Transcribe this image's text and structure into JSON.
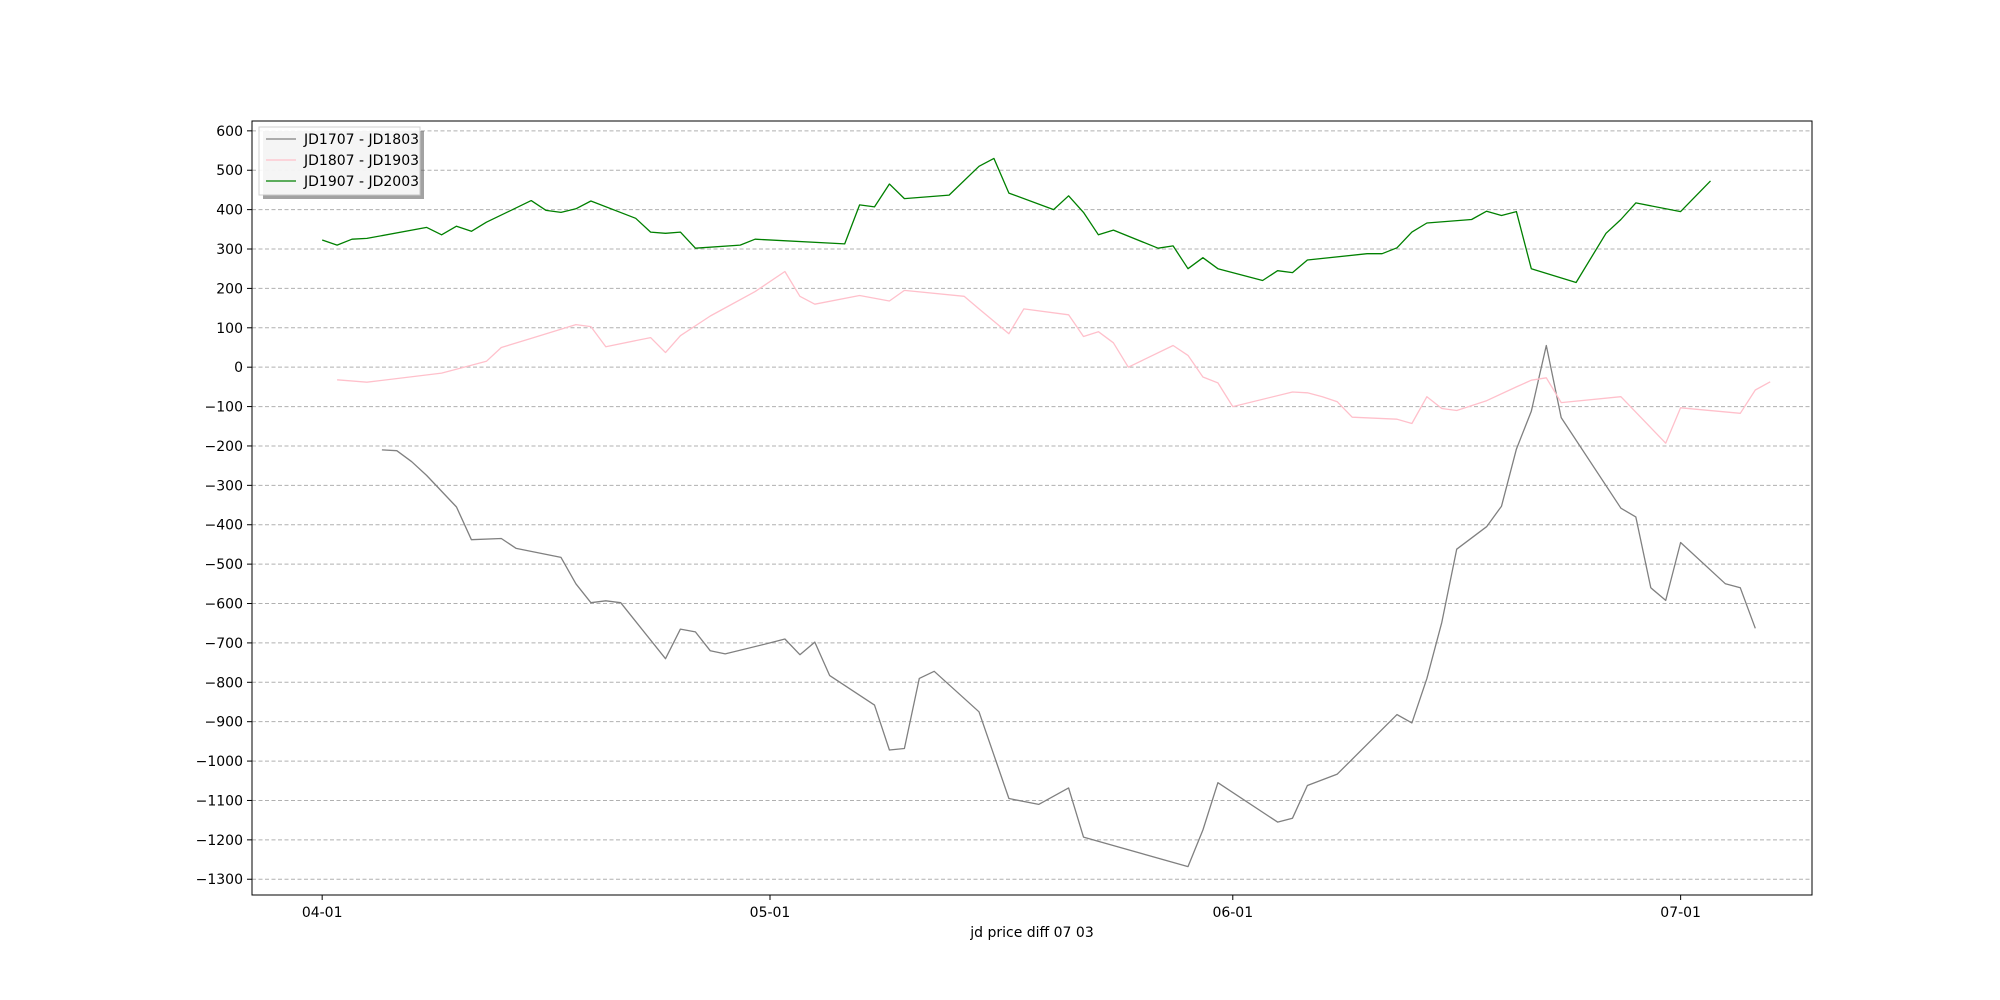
{
  "chart_data": {
    "type": "line",
    "xlabel": "jd price diff 07 03",
    "ylabel": "",
    "title": "",
    "x_ticks": [
      {
        "day": 0,
        "label": "04-01"
      },
      {
        "day": 30,
        "label": "05-01"
      },
      {
        "day": 61,
        "label": "06-01"
      },
      {
        "day": 91,
        "label": "07-01"
      }
    ],
    "xlim": [
      -4.7,
      99.8
    ],
    "ylim": [
      -1340,
      625
    ],
    "y_ticks": [
      600,
      500,
      400,
      300,
      200,
      100,
      0,
      -100,
      -200,
      -300,
      -400,
      -500,
      -600,
      -700,
      -800,
      -900,
      -1000,
      -1100,
      -1200,
      -1300
    ],
    "y_tick_labels": [
      "600",
      "500",
      "400",
      "300",
      "200",
      "100",
      "0",
      "−100",
      "−200",
      "−300",
      "−400",
      "−500",
      "−600",
      "−700",
      "−800",
      "−900",
      "−1000",
      "−1100",
      "−1200",
      "−1300"
    ],
    "grid": "horizontal dashed",
    "legend_position": "top-left",
    "series": [
      {
        "name": "JD1707 - JD1803",
        "color": "#808080",
        "points": [
          [
            4,
            -210
          ],
          [
            5,
            -212
          ],
          [
            6,
            -240
          ],
          [
            7,
            -275
          ],
          [
            9,
            -355
          ],
          [
            10,
            -438
          ],
          [
            12,
            -435
          ],
          [
            13,
            -460
          ],
          [
            16,
            -483
          ],
          [
            17,
            -550
          ],
          [
            18,
            -598
          ],
          [
            19,
            -593
          ],
          [
            20,
            -598
          ],
          [
            23,
            -740
          ],
          [
            24,
            -665
          ],
          [
            25,
            -672
          ],
          [
            26,
            -720
          ],
          [
            27,
            -728
          ],
          [
            30,
            -700
          ],
          [
            31,
            -690
          ],
          [
            32,
            -730
          ],
          [
            33,
            -698
          ],
          [
            34,
            -783
          ],
          [
            37,
            -858
          ],
          [
            38,
            -972
          ],
          [
            39,
            -968
          ],
          [
            40,
            -790
          ],
          [
            41,
            -772
          ],
          [
            44,
            -875
          ],
          [
            46,
            -1095
          ],
          [
            48,
            -1110
          ],
          [
            50,
            -1068
          ],
          [
            51,
            -1193
          ],
          [
            58,
            -1268
          ],
          [
            59,
            -1175
          ],
          [
            60,
            -1055
          ],
          [
            64,
            -1155
          ],
          [
            65,
            -1145
          ],
          [
            66,
            -1062
          ],
          [
            68,
            -1033
          ],
          [
            72,
            -882
          ],
          [
            73,
            -903
          ],
          [
            74,
            -790
          ],
          [
            75,
            -648
          ],
          [
            76,
            -462
          ],
          [
            78,
            -405
          ],
          [
            79,
            -353
          ],
          [
            80,
            -208
          ],
          [
            81,
            -112
          ],
          [
            82,
            55
          ],
          [
            83,
            -128
          ],
          [
            87,
            -358
          ],
          [
            88,
            -380
          ],
          [
            89,
            -560
          ],
          [
            90,
            -592
          ],
          [
            91,
            -445
          ],
          [
            94,
            -550
          ],
          [
            95,
            -560
          ],
          [
            96,
            -663
          ]
        ]
      },
      {
        "name": "JD1807 - JD1903",
        "color": "#ffc0cb",
        "points": [
          [
            1,
            -32
          ],
          [
            3,
            -38
          ],
          [
            8,
            -15
          ],
          [
            10,
            5
          ],
          [
            11,
            15
          ],
          [
            12,
            50
          ],
          [
            14,
            73
          ],
          [
            17,
            108
          ],
          [
            18,
            103
          ],
          [
            19,
            52
          ],
          [
            22,
            75
          ],
          [
            23,
            37
          ],
          [
            24,
            80
          ],
          [
            26,
            130
          ],
          [
            29,
            192
          ],
          [
            31,
            243
          ],
          [
            32,
            180
          ],
          [
            33,
            160
          ],
          [
            36,
            182
          ],
          [
            38,
            168
          ],
          [
            39,
            195
          ],
          [
            43,
            180
          ],
          [
            44,
            148
          ],
          [
            46,
            85
          ],
          [
            47,
            148
          ],
          [
            50,
            133
          ],
          [
            51,
            78
          ],
          [
            52,
            90
          ],
          [
            53,
            62
          ],
          [
            54,
            0
          ],
          [
            57,
            55
          ],
          [
            58,
            30
          ],
          [
            59,
            -25
          ],
          [
            60,
            -40
          ],
          [
            61,
            -100
          ],
          [
            65,
            -63
          ],
          [
            66,
            -65
          ],
          [
            67,
            -75
          ],
          [
            68,
            -88
          ],
          [
            69,
            -127
          ],
          [
            72,
            -132
          ],
          [
            73,
            -143
          ],
          [
            74,
            -75
          ],
          [
            75,
            -105
          ],
          [
            76,
            -110
          ],
          [
            78,
            -85
          ],
          [
            80,
            -50
          ],
          [
            81,
            -33
          ],
          [
            82,
            -27
          ],
          [
            83,
            -90
          ],
          [
            87,
            -75
          ],
          [
            90,
            -193
          ],
          [
            91,
            -103
          ],
          [
            95,
            -117
          ],
          [
            96,
            -58
          ],
          [
            97,
            -37
          ]
        ]
      },
      {
        "name": "JD1907 - JD2003",
        "color": "#008000",
        "points": [
          [
            0,
            323
          ],
          [
            1,
            310
          ],
          [
            2,
            325
          ],
          [
            3,
            327
          ],
          [
            7,
            355
          ],
          [
            8,
            336
          ],
          [
            9,
            358
          ],
          [
            10,
            345
          ],
          [
            11,
            368
          ],
          [
            14,
            423
          ],
          [
            15,
            398
          ],
          [
            16,
            393
          ],
          [
            17,
            402
          ],
          [
            18,
            422
          ],
          [
            21,
            378
          ],
          [
            22,
            343
          ],
          [
            23,
            340
          ],
          [
            24,
            343
          ],
          [
            25,
            302
          ],
          [
            28,
            310
          ],
          [
            29,
            325
          ],
          [
            35,
            313
          ],
          [
            36,
            412
          ],
          [
            37,
            407
          ],
          [
            38,
            465
          ],
          [
            39,
            428
          ],
          [
            42,
            437
          ],
          [
            44,
            510
          ],
          [
            45,
            530
          ],
          [
            46,
            442
          ],
          [
            49,
            400
          ],
          [
            50,
            435
          ],
          [
            51,
            393
          ],
          [
            52,
            336
          ],
          [
            53,
            348
          ],
          [
            56,
            302
          ],
          [
            57,
            308
          ],
          [
            58,
            250
          ],
          [
            59,
            278
          ],
          [
            60,
            250
          ],
          [
            63,
            220
          ],
          [
            64,
            245
          ],
          [
            65,
            240
          ],
          [
            66,
            272
          ],
          [
            70,
            288
          ],
          [
            71,
            288
          ],
          [
            72,
            303
          ],
          [
            73,
            343
          ],
          [
            74,
            366
          ],
          [
            77,
            375
          ],
          [
            78,
            396
          ],
          [
            79,
            385
          ],
          [
            80,
            395
          ],
          [
            81,
            250
          ],
          [
            84,
            215
          ],
          [
            86,
            340
          ],
          [
            87,
            375
          ],
          [
            88,
            417
          ],
          [
            91,
            395
          ],
          [
            93,
            473
          ]
        ]
      }
    ]
  }
}
